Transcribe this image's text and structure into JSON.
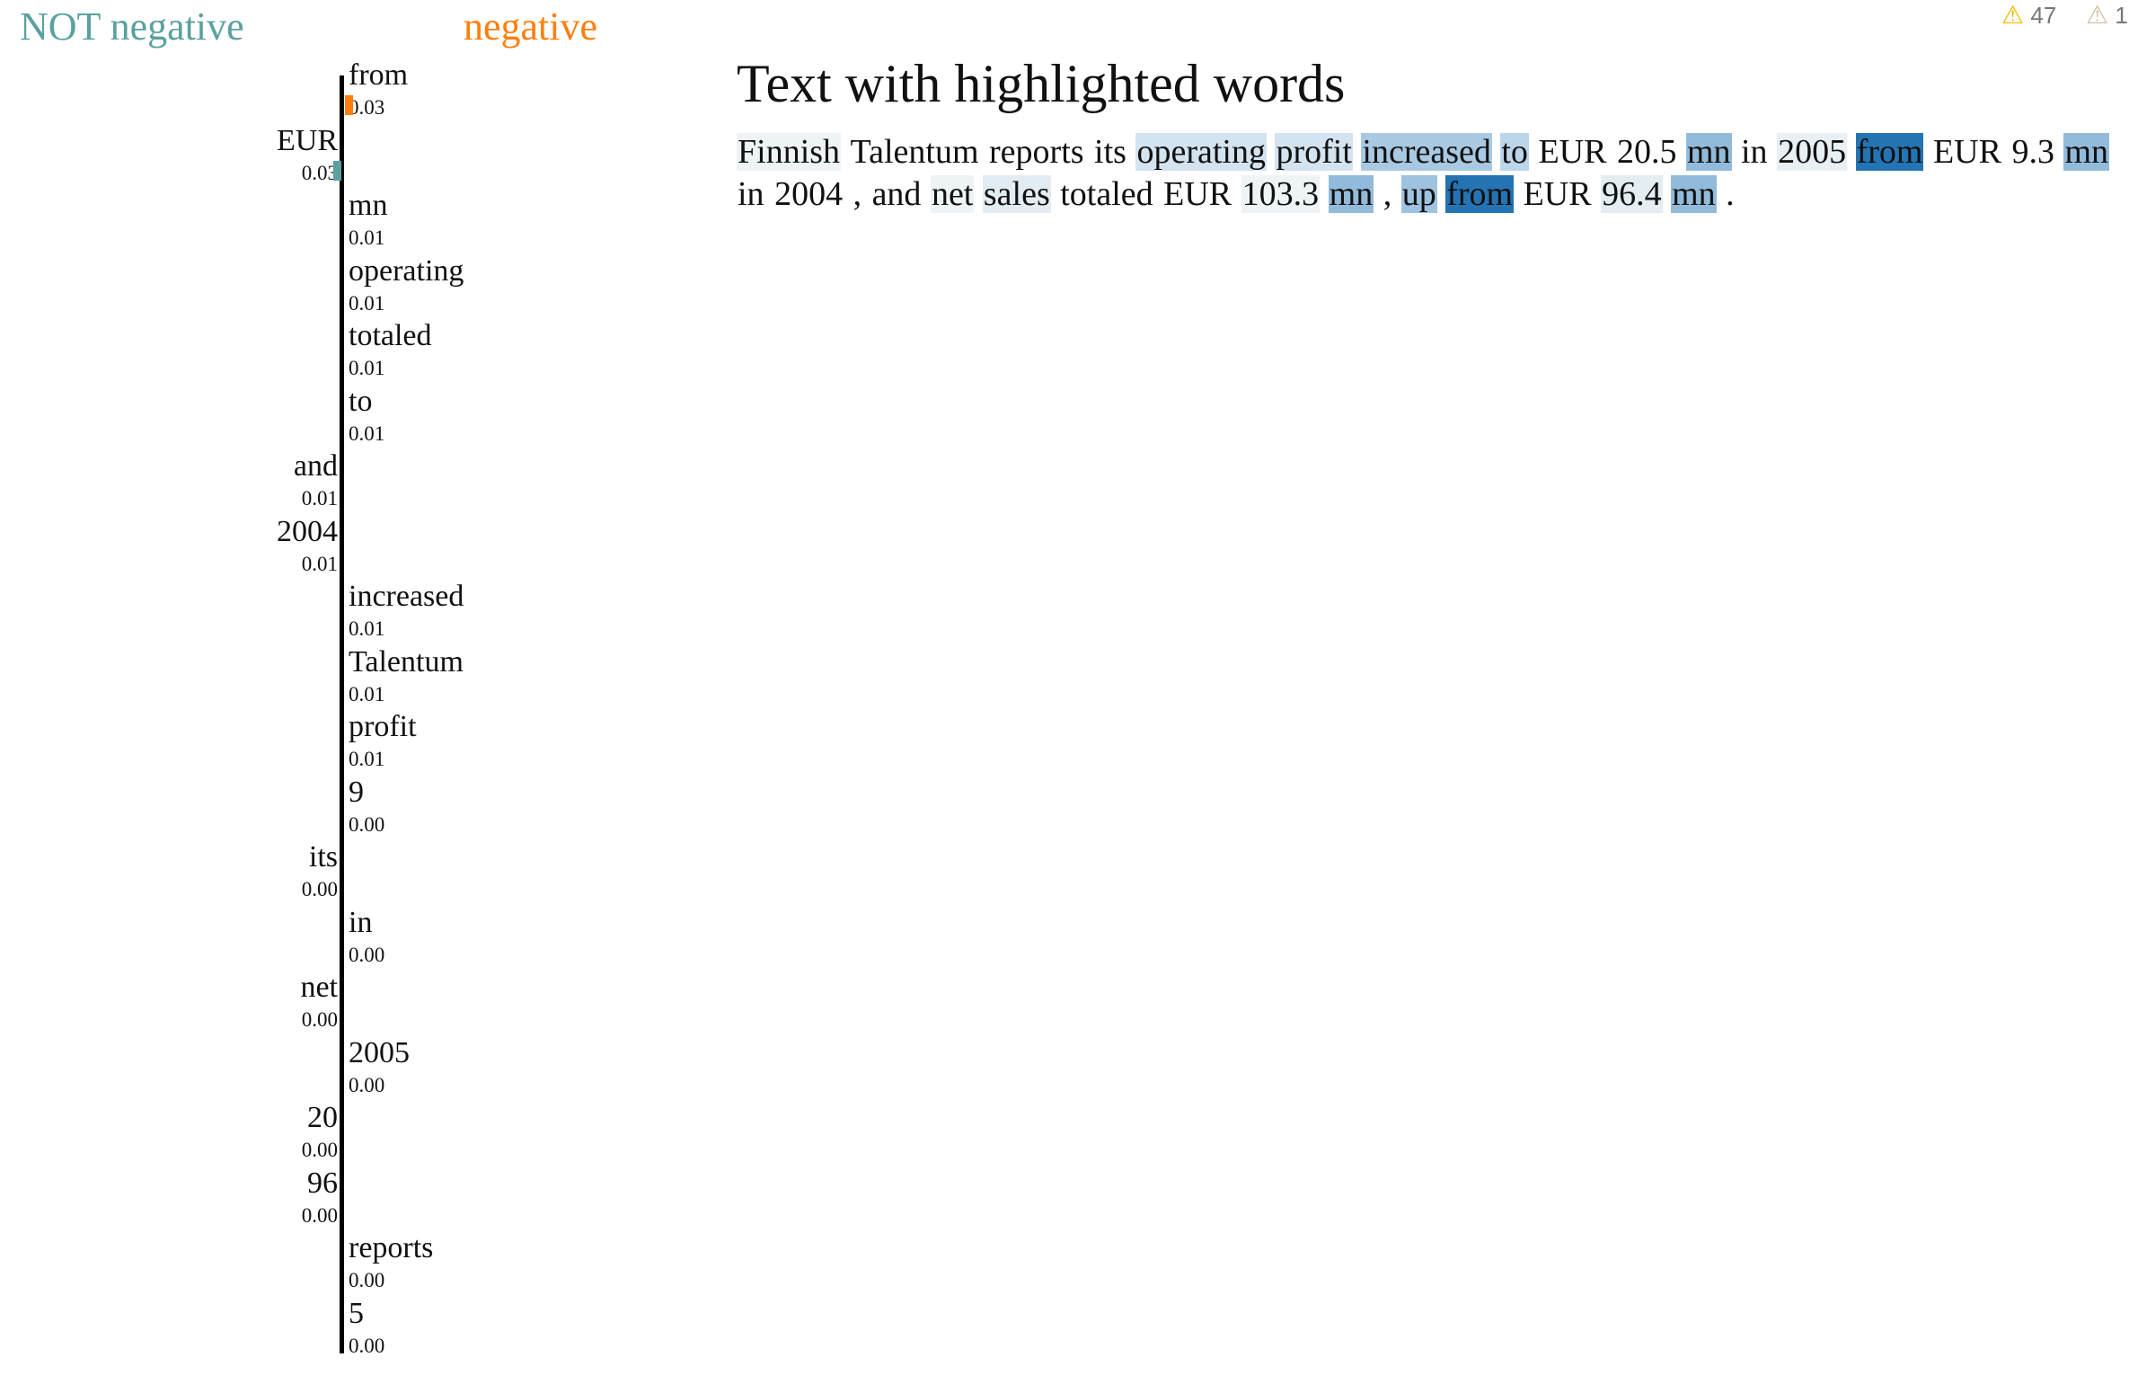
{
  "classes": {
    "not_negative": "NOT negative",
    "negative": "negative"
  },
  "colors": {
    "not_negative": "#5aa1a0",
    "negative": "#ff7f0e"
  },
  "warnings": [
    {
      "icon": "warning-icon",
      "color": "#f5b800",
      "count": "47"
    },
    {
      "icon": "warning-icon",
      "color": "#cdbfa0",
      "count": "1"
    }
  ],
  "features": [
    {
      "word": "from",
      "value": "0.03",
      "side": "negative"
    },
    {
      "word": "EUR",
      "value": "0.03",
      "side": "not_negative"
    },
    {
      "word": "mn",
      "value": "0.01",
      "side": "negative"
    },
    {
      "word": "operating",
      "value": "0.01",
      "side": "negative"
    },
    {
      "word": "totaled",
      "value": "0.01",
      "side": "negative"
    },
    {
      "word": "to",
      "value": "0.01",
      "side": "negative"
    },
    {
      "word": "and",
      "value": "0.01",
      "side": "not_negative"
    },
    {
      "word": "2004",
      "value": "0.01",
      "side": "not_negative"
    },
    {
      "word": "increased",
      "value": "0.01",
      "side": "negative"
    },
    {
      "word": "Talentum",
      "value": "0.01",
      "side": "negative"
    },
    {
      "word": "profit",
      "value": "0.01",
      "side": "negative"
    },
    {
      "word": "9",
      "value": "0.00",
      "side": "negative"
    },
    {
      "word": "its",
      "value": "0.00",
      "side": "not_negative"
    },
    {
      "word": "in",
      "value": "0.00",
      "side": "negative"
    },
    {
      "word": "net",
      "value": "0.00",
      "side": "not_negative"
    },
    {
      "word": "2005",
      "value": "0.00",
      "side": "negative"
    },
    {
      "word": "20",
      "value": "0.00",
      "side": "not_negative"
    },
    {
      "word": "96",
      "value": "0.00",
      "side": "not_negative"
    },
    {
      "word": "reports",
      "value": "0.00",
      "side": "negative"
    },
    {
      "word": "5",
      "value": "0.00",
      "side": "negative"
    }
  ],
  "main": {
    "title": "Text with highlighted words",
    "tokens": [
      {
        "t": "Finnish",
        "bg": "#eef3f6"
      },
      {
        "t": "Talentum",
        "bg": ""
      },
      {
        "t": "reports",
        "bg": ""
      },
      {
        "t": "its",
        "bg": ""
      },
      {
        "t": "operating",
        "bg": "#d3e3f0"
      },
      {
        "t": "profit",
        "bg": "#d3e3f0"
      },
      {
        "t": "increased",
        "bg": "#a9c9e2"
      },
      {
        "t": "to",
        "bg": "#bcd5ea"
      },
      {
        "t": "EUR",
        "bg": ""
      },
      {
        "t": "20.5",
        "bg": ""
      },
      {
        "t": "mn",
        "bg": "#92bbdb"
      },
      {
        "t": "in",
        "bg": ""
      },
      {
        "t": "2005",
        "bg": "#e8f0f4"
      },
      {
        "t": "from",
        "bg": "#2474b4"
      },
      {
        "t": "EUR",
        "bg": ""
      },
      {
        "t": "9.3",
        "bg": ""
      },
      {
        "t": "mn",
        "bg": "#92bbdb"
      },
      {
        "t": "in",
        "bg": ""
      },
      {
        "t": "2004",
        "bg": ""
      },
      {
        "t": ",",
        "bg": ""
      },
      {
        "t": "and",
        "bg": ""
      },
      {
        "t": "net",
        "bg": "#eef3f6"
      },
      {
        "t": "sales",
        "bg": "#e3ecf2"
      },
      {
        "t": "totaled",
        "bg": ""
      },
      {
        "t": "EUR",
        "bg": ""
      },
      {
        "t": "103.3",
        "bg": "#eef3f6"
      },
      {
        "t": "mn",
        "bg": "#92bbdb"
      },
      {
        "t": ",",
        "bg": ""
      },
      {
        "t": "up",
        "bg": "#9ec2df"
      },
      {
        "t": "from",
        "bg": "#2474b4"
      },
      {
        "t": "EUR",
        "bg": ""
      },
      {
        "t": "96.4",
        "bg": "#e4edf1"
      },
      {
        "t": "mn",
        "bg": "#92bbdb"
      },
      {
        "t": ".",
        "bg": ""
      }
    ]
  }
}
